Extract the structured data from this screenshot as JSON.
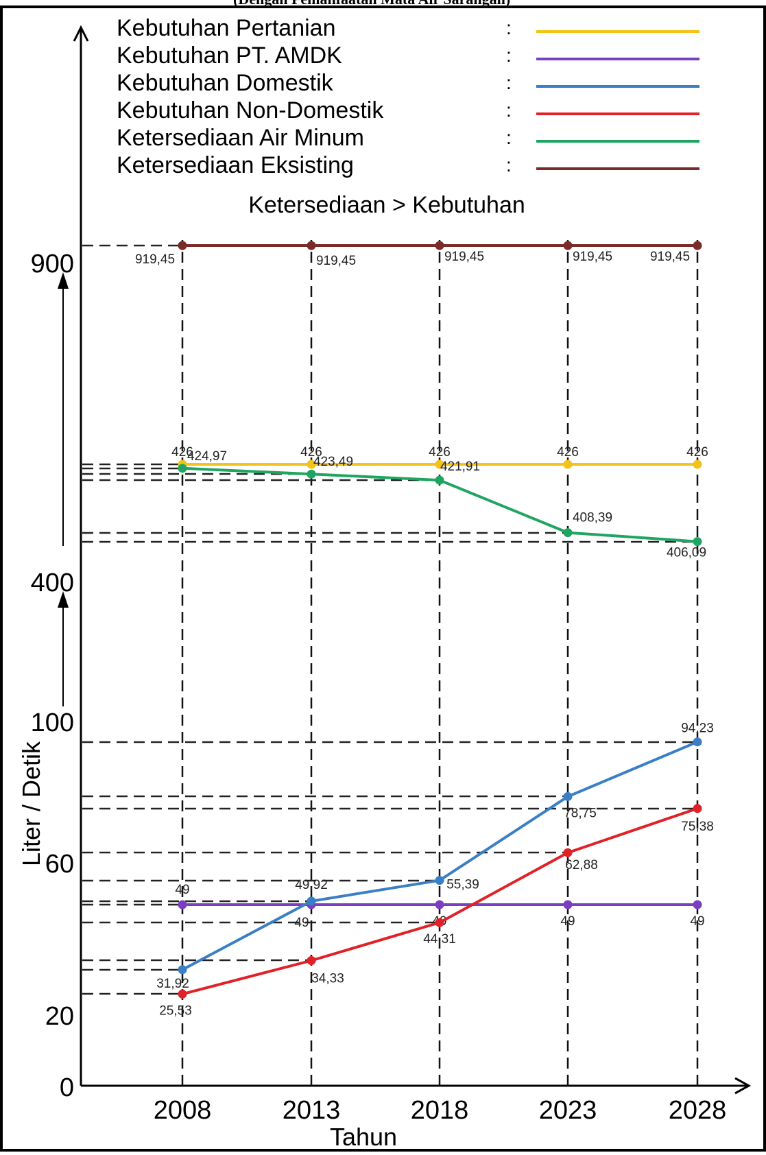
{
  "caption": "(Dengan Pemanfaatan Mata Air Sarangan)",
  "chart_data": {
    "type": "line",
    "subtitle": "Ketersediaan > Kebutuhan",
    "xlabel": "Tahun",
    "ylabel": "Liter / Detik",
    "x": [
      2008,
      2013,
      2018,
      2023,
      2028
    ],
    "x_tick_labels": [
      "2008",
      "2013",
      "2018",
      "2023",
      "2028"
    ],
    "y_tick_labels": [
      "0",
      "20",
      "60",
      "100",
      "400",
      "900"
    ],
    "y_scale": "broken (0–100 linear, upper segments compressed)",
    "grid": false,
    "legend_position": "top",
    "legend_separator": ":",
    "series": [
      {
        "name": "Kebutuhan Pertanian",
        "color": "#f2c31b",
        "values": [
          426,
          426,
          426,
          426,
          426
        ],
        "labels": [
          "426",
          "426",
          "426",
          "426",
          "426"
        ]
      },
      {
        "name": "Kebutuhan PT. AMDK",
        "color": "#7a3fc0",
        "values": [
          49,
          49,
          49,
          49,
          49
        ],
        "labels": [
          "49",
          "49",
          "49",
          "49",
          "49"
        ]
      },
      {
        "name": "Kebutuhan Domestik",
        "color": "#3a7fc6",
        "values": [
          31.92,
          49.92,
          55.39,
          78.75,
          94.23
        ],
        "labels": [
          "31,92",
          "49,92",
          "55,39",
          "78,75",
          "94,23"
        ]
      },
      {
        "name": "Kebutuhan Non-Domestik",
        "color": "#e02228",
        "values": [
          25.53,
          34.33,
          44.31,
          62.88,
          75.38
        ],
        "labels": [
          "25,53",
          "34,33",
          "44,31",
          "62,88",
          "75,38"
        ]
      },
      {
        "name": "Ketersediaan Air Minum",
        "color": "#1fa562",
        "values": [
          424.97,
          423.49,
          421.91,
          408.39,
          406.09
        ],
        "labels": [
          "424,97",
          "423,49",
          "421,91",
          "408,39",
          "406,09"
        ]
      },
      {
        "name": "Ketersediaan Eksisting",
        "color": "#7b2a2a",
        "values": [
          919.45,
          919.45,
          919.45,
          919.45,
          919.45
        ],
        "labels": [
          "919,45",
          "919,45",
          "919,45",
          "919,45",
          "919,45"
        ]
      }
    ]
  }
}
